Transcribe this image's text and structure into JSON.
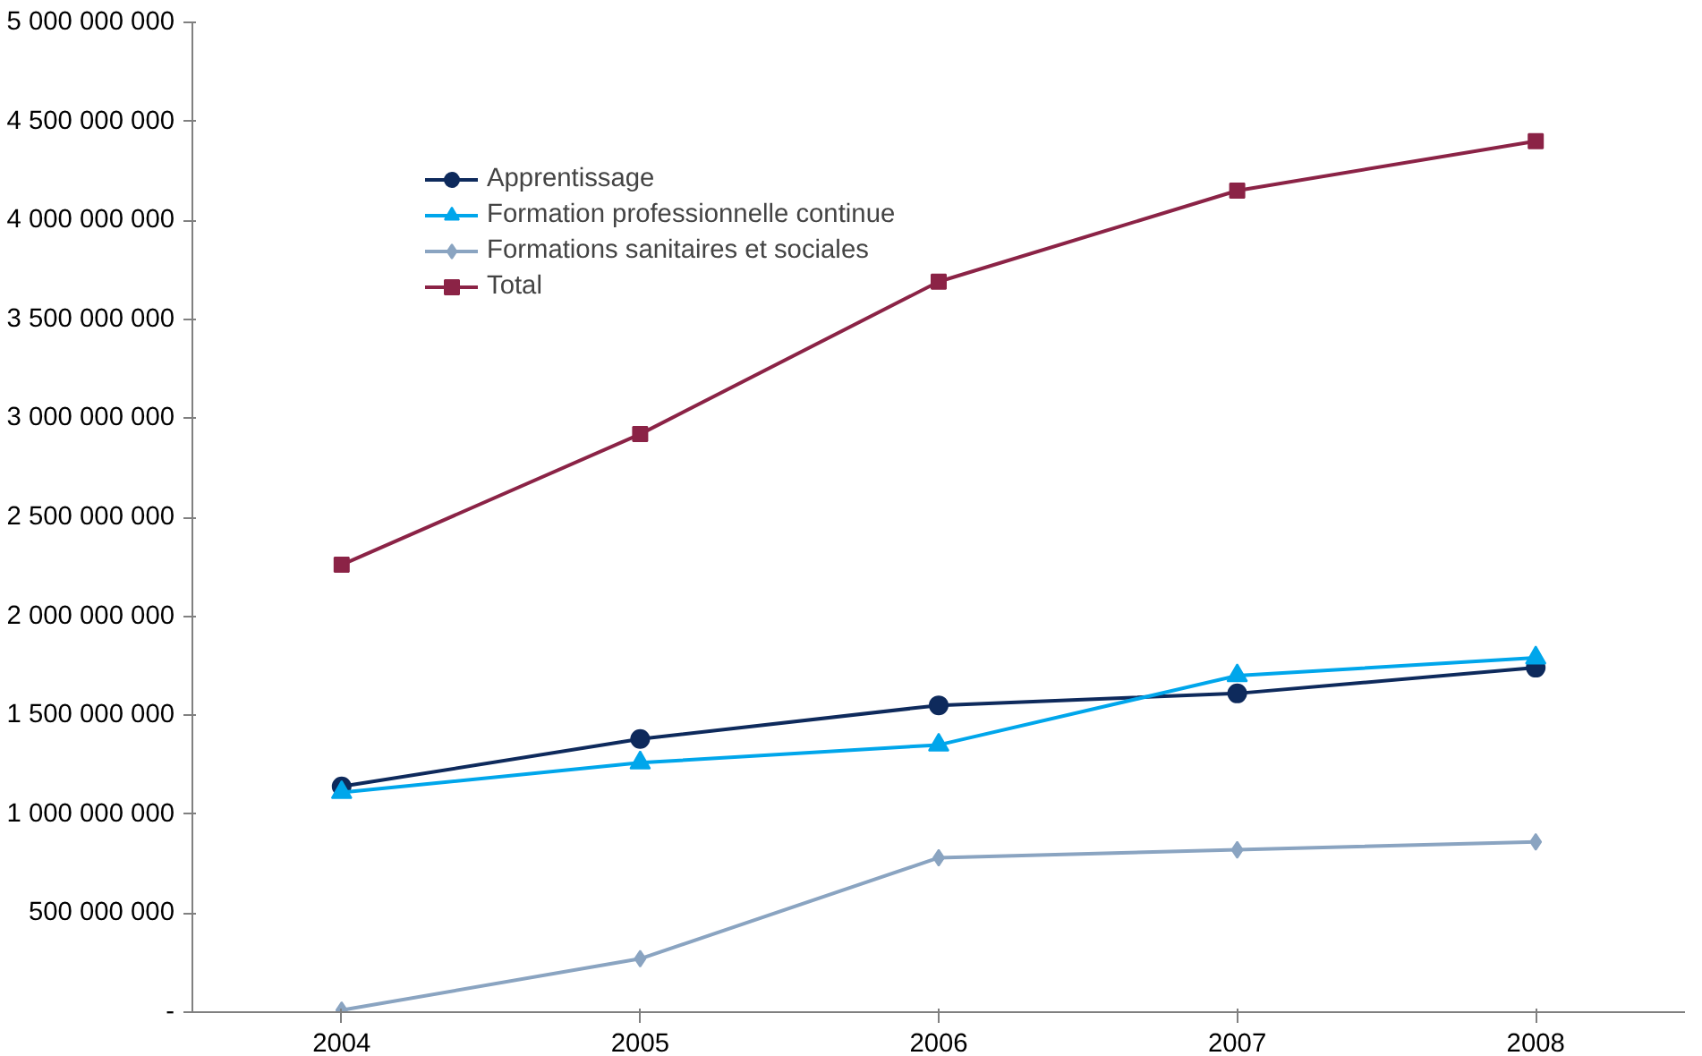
{
  "chart_data": {
    "type": "line",
    "categories": [
      "2004",
      "2005",
      "2006",
      "2007",
      "2008"
    ],
    "series": [
      {
        "name": "Apprentissage",
        "color": "#0e2a5c",
        "marker": "circle",
        "values": [
          1140000000,
          1380000000,
          1550000000,
          1610000000,
          1740000000
        ]
      },
      {
        "name": "Formation professionnelle continue",
        "color": "#00a6eb",
        "marker": "triangle",
        "values": [
          1110000000,
          1260000000,
          1350000000,
          1700000000,
          1790000000
        ]
      },
      {
        "name": "Formations sanitaires et sociales",
        "color": "#8aa4c1",
        "marker": "diamond",
        "values": [
          10000000,
          270000000,
          780000000,
          820000000,
          860000000
        ]
      },
      {
        "name": "Total",
        "color": "#8b2346",
        "marker": "square",
        "values": [
          2260000000,
          2920000000,
          3690000000,
          4150000000,
          4400000000
        ]
      }
    ],
    "ylim": [
      0,
      5000000000
    ],
    "yticks": [
      {
        "value": 0,
        "label": "-"
      },
      {
        "value": 500000000,
        "label": "500 000 000"
      },
      {
        "value": 1000000000,
        "label": "1 000 000 000"
      },
      {
        "value": 1500000000,
        "label": "1 500 000 000"
      },
      {
        "value": 2000000000,
        "label": "2 000 000 000"
      },
      {
        "value": 2500000000,
        "label": "2 500 000 000"
      },
      {
        "value": 3000000000,
        "label": "3 000 000 000"
      },
      {
        "value": 3500000000,
        "label": "3 500 000 000"
      },
      {
        "value": 4000000000,
        "label": "4 000 000 000"
      },
      {
        "value": 4500000000,
        "label": "4 500 000 000"
      },
      {
        "value": 5000000000,
        "label": "5 000 000 000"
      }
    ],
    "grid": false,
    "legend": "top left",
    "line_style": "solid"
  }
}
